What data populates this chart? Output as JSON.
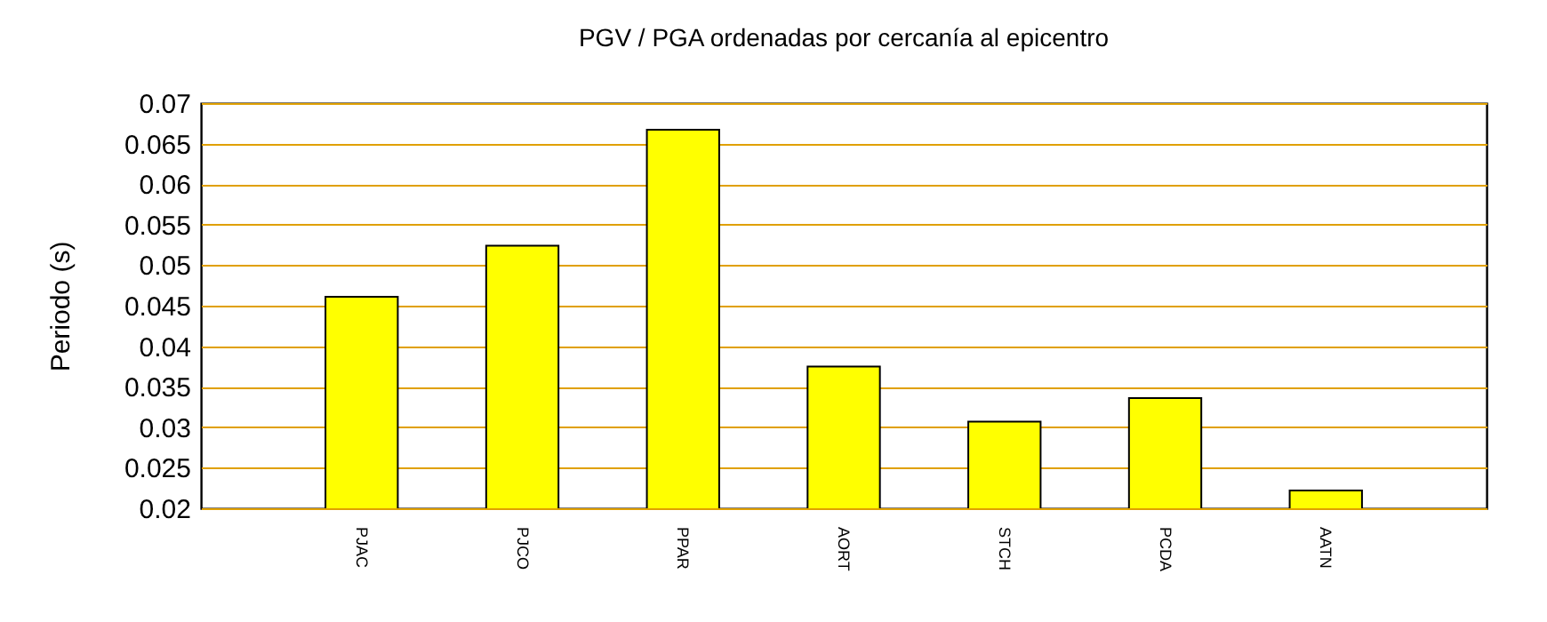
{
  "chart_data": {
    "type": "bar",
    "title": "PGV / PGA ordenadas por cercanía al epicentro",
    "ylabel": "Periodo (s)",
    "categories": [
      "PJAC",
      "PJCO",
      "PPAR",
      "AORT",
      "STCH",
      "PCDA",
      "AATN"
    ],
    "values": [
      0.0461,
      0.0524,
      0.0667,
      0.0375,
      0.0307,
      0.0336,
      0.0222
    ],
    "color": "#ffff00",
    "ylim": [
      0.02,
      0.07
    ],
    "yticks": [
      0.02,
      0.025,
      0.03,
      0.035,
      0.04,
      0.045,
      0.05,
      0.055,
      0.06,
      0.065,
      0.07
    ],
    "grid": "y"
  }
}
